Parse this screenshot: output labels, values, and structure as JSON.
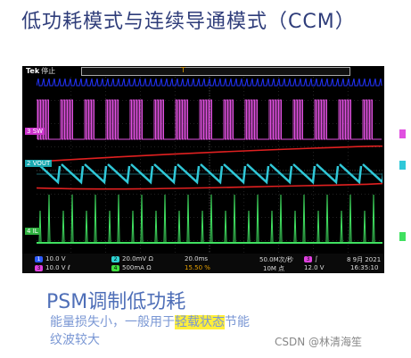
{
  "title": "低功耗模式与连续导通模式（CCM）",
  "scope": {
    "brand": "Tek",
    "run_state": "停止",
    "ch_labels": [
      "SW",
      "VOUT",
      "IL"
    ],
    "status": {
      "ch1": {
        "num": "1",
        "value": "10.0 V",
        "color": "#2e5bff"
      },
      "ch2": {
        "num": "2",
        "value": "20.0mV",
        "extra": "Ω",
        "color": "#2fd3d3"
      },
      "ch3": {
        "num": "3",
        "value": "10.0 V",
        "extra": "ℓ",
        "color": "#e040e0"
      },
      "ch4": {
        "num": "4",
        "value": "500mA",
        "extra": "Ω",
        "color": "#40e040"
      },
      "timebase": "20.0ms",
      "trigger_pos": "15.50 %",
      "sample_rate": "50.0M次/秒",
      "record_length": "10M 点",
      "trig_ch": "3",
      "trig_slope": "∫",
      "trig_level": "12.0 V",
      "date": "8 9月 2021",
      "time": "16:35:10"
    }
  },
  "subtitle": "PSM调制低功耗",
  "desc_line1_pre": "能量损失小，一般用于",
  "desc_line1_hl": "轻载状态",
  "desc_line1_post": "节能",
  "desc_line2": "纹波较大",
  "watermark": "CSDN @林清海笙",
  "colors": {
    "sw": "#e050e0",
    "vout": "#30c8d8",
    "il": "#40e060",
    "top": "#2233ff",
    "annot": "#e02020"
  }
}
